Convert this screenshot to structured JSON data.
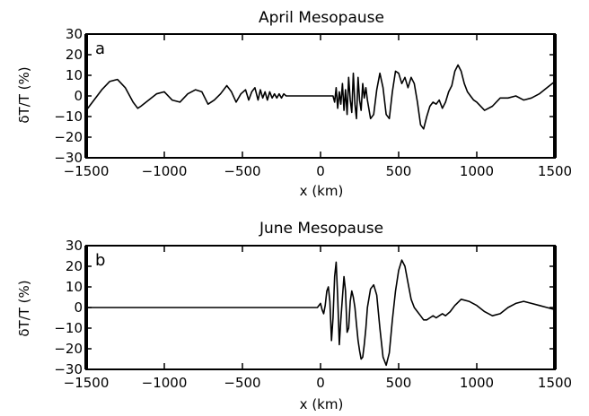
{
  "chart_data": [
    {
      "type": "line",
      "panel_label": "a",
      "title": "April Mesopause",
      "xlabel": "x (km)",
      "ylabel": "δT/T (%)",
      "xlim": [
        -1500,
        1500
      ],
      "ylim": [
        -30,
        30
      ],
      "xticks": [
        "−1500",
        "−1000",
        "−500",
        "0",
        "500",
        "1000",
        "1500"
      ],
      "yticks": [
        "30",
        "20",
        "10",
        "0",
        "−10",
        "−20",
        "−30"
      ],
      "grid": false,
      "series": [
        {
          "x": [
            -1500,
            -1450,
            -1400,
            -1350,
            -1300,
            -1250,
            -1200,
            -1170,
            -1150,
            -1100,
            -1050,
            -1000,
            -950,
            -900,
            -850,
            -800,
            -760,
            -720,
            -680,
            -640,
            -600,
            -570,
            -540,
            -510,
            -480,
            -460,
            -440,
            -420,
            -400,
            -385,
            -370,
            -355,
            -340,
            -325,
            -310,
            -295,
            -280,
            -265,
            -250,
            -235,
            -220,
            -210,
            -200,
            0,
            80,
            90,
            100,
            110,
            120,
            130,
            140,
            150,
            160,
            170,
            180,
            190,
            200,
            210,
            220,
            230,
            240,
            250,
            260,
            270,
            280,
            290,
            300,
            320,
            340,
            360,
            380,
            400,
            420,
            440,
            460,
            480,
            500,
            520,
            540,
            560,
            580,
            600,
            620,
            640,
            660,
            680,
            700,
            720,
            740,
            760,
            780,
            800,
            820,
            840,
            860,
            880,
            900,
            920,
            940,
            960,
            980,
            1000,
            1050,
            1100,
            1150,
            1200,
            1250,
            1300,
            1350,
            1400,
            1450,
            1500
          ],
          "y": [
            -7,
            -2,
            3,
            7,
            8,
            4,
            -3,
            -6,
            -5,
            -2,
            1,
            2,
            -2,
            -3,
            1,
            3,
            2,
            -4,
            -2,
            1,
            5,
            2,
            -3,
            1,
            3,
            -2,
            2,
            4,
            -2,
            3,
            -1,
            2,
            -2,
            2,
            -1,
            1,
            -1,
            1,
            -1,
            1,
            0,
            0,
            0,
            0,
            0,
            -3,
            4,
            -6,
            2,
            -4,
            6,
            -7,
            3,
            -9,
            9,
            -2,
            -8,
            11,
            -4,
            -11,
            9,
            -2,
            -7,
            6,
            -1,
            4,
            -2,
            -11,
            -9,
            3,
            11,
            4,
            -9,
            -11,
            2,
            12,
            11,
            6,
            9,
            4,
            9,
            6,
            -3,
            -14,
            -16,
            -10,
            -5,
            -3,
            -4,
            -2,
            -6,
            -3,
            2,
            5,
            12,
            15,
            12,
            6,
            2,
            0,
            -2,
            -3,
            -7,
            -5,
            -1,
            -1,
            0,
            -2,
            -1,
            1,
            4,
            7
          ]
        }
      ]
    },
    {
      "type": "line",
      "panel_label": "b",
      "title": "June Mesopause",
      "xlabel": "x (km)",
      "ylabel": "δT/T (%)",
      "xlim": [
        -1500,
        1500
      ],
      "ylim": [
        -30,
        30
      ],
      "xticks": [
        "−1500",
        "−1000",
        "−500",
        "0",
        "500",
        "1000",
        "1500"
      ],
      "yticks": [
        "30",
        "20",
        "10",
        "0",
        "−10",
        "−20",
        "−30"
      ],
      "grid": false,
      "series": [
        {
          "x": [
            -1500,
            -20,
            0,
            10,
            20,
            30,
            40,
            50,
            60,
            70,
            80,
            90,
            100,
            110,
            120,
            130,
            140,
            150,
            160,
            170,
            180,
            190,
            200,
            210,
            220,
            230,
            240,
            250,
            260,
            270,
            280,
            290,
            300,
            320,
            340,
            360,
            380,
            400,
            420,
            440,
            460,
            480,
            500,
            520,
            540,
            560,
            580,
            600,
            620,
            640,
            660,
            680,
            700,
            720,
            740,
            760,
            780,
            800,
            830,
            860,
            900,
            950,
            1000,
            1050,
            1100,
            1150,
            1200,
            1250,
            1300,
            1350,
            1400,
            1450,
            1500
          ],
          "y": [
            0,
            0,
            2,
            -1,
            -3,
            1,
            8,
            10,
            3,
            -16,
            -5,
            15,
            22,
            5,
            -18,
            -6,
            5,
            15,
            8,
            -12,
            -10,
            3,
            8,
            5,
            0,
            -8,
            -16,
            -21,
            -25,
            -24,
            -18,
            -10,
            0,
            9,
            11,
            6,
            -10,
            -24,
            -28,
            -22,
            -6,
            8,
            18,
            23,
            20,
            12,
            4,
            0,
            -2,
            -4,
            -6,
            -6,
            -5,
            -4,
            -5,
            -4,
            -3,
            -4,
            -2,
            1,
            4,
            3,
            1,
            -2,
            -4,
            -3,
            0,
            2,
            3,
            2,
            1,
            0,
            -1
          ]
        }
      ]
    }
  ]
}
